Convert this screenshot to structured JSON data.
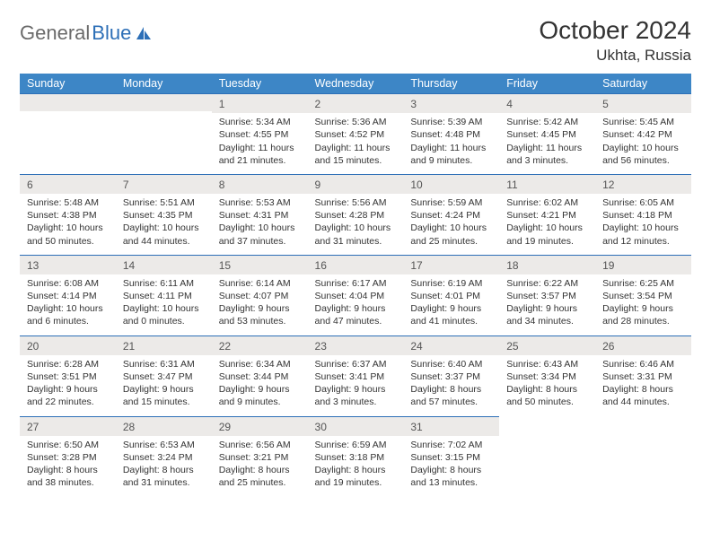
{
  "logo": {
    "word1": "General",
    "word2": "Blue"
  },
  "title": "October 2024",
  "location": "Ukhta, Russia",
  "colors": {
    "header_bg": "#3d86c6",
    "header_text": "#ffffff",
    "daynum_bg": "#eceae8",
    "border": "#2d6fb7",
    "logo_gray": "#6a6a6a",
    "logo_blue": "#2d6fb7",
    "text": "#333333"
  },
  "weekdays": [
    "Sunday",
    "Monday",
    "Tuesday",
    "Wednesday",
    "Thursday",
    "Friday",
    "Saturday"
  ],
  "weeks": [
    [
      null,
      null,
      {
        "n": "1",
        "sr": "Sunrise: 5:34 AM",
        "ss": "Sunset: 4:55 PM",
        "dl": "Daylight: 11 hours and 21 minutes."
      },
      {
        "n": "2",
        "sr": "Sunrise: 5:36 AM",
        "ss": "Sunset: 4:52 PM",
        "dl": "Daylight: 11 hours and 15 minutes."
      },
      {
        "n": "3",
        "sr": "Sunrise: 5:39 AM",
        "ss": "Sunset: 4:48 PM",
        "dl": "Daylight: 11 hours and 9 minutes."
      },
      {
        "n": "4",
        "sr": "Sunrise: 5:42 AM",
        "ss": "Sunset: 4:45 PM",
        "dl": "Daylight: 11 hours and 3 minutes."
      },
      {
        "n": "5",
        "sr": "Sunrise: 5:45 AM",
        "ss": "Sunset: 4:42 PM",
        "dl": "Daylight: 10 hours and 56 minutes."
      }
    ],
    [
      {
        "n": "6",
        "sr": "Sunrise: 5:48 AM",
        "ss": "Sunset: 4:38 PM",
        "dl": "Daylight: 10 hours and 50 minutes."
      },
      {
        "n": "7",
        "sr": "Sunrise: 5:51 AM",
        "ss": "Sunset: 4:35 PM",
        "dl": "Daylight: 10 hours and 44 minutes."
      },
      {
        "n": "8",
        "sr": "Sunrise: 5:53 AM",
        "ss": "Sunset: 4:31 PM",
        "dl": "Daylight: 10 hours and 37 minutes."
      },
      {
        "n": "9",
        "sr": "Sunrise: 5:56 AM",
        "ss": "Sunset: 4:28 PM",
        "dl": "Daylight: 10 hours and 31 minutes."
      },
      {
        "n": "10",
        "sr": "Sunrise: 5:59 AM",
        "ss": "Sunset: 4:24 PM",
        "dl": "Daylight: 10 hours and 25 minutes."
      },
      {
        "n": "11",
        "sr": "Sunrise: 6:02 AM",
        "ss": "Sunset: 4:21 PM",
        "dl": "Daylight: 10 hours and 19 minutes."
      },
      {
        "n": "12",
        "sr": "Sunrise: 6:05 AM",
        "ss": "Sunset: 4:18 PM",
        "dl": "Daylight: 10 hours and 12 minutes."
      }
    ],
    [
      {
        "n": "13",
        "sr": "Sunrise: 6:08 AM",
        "ss": "Sunset: 4:14 PM",
        "dl": "Daylight: 10 hours and 6 minutes."
      },
      {
        "n": "14",
        "sr": "Sunrise: 6:11 AM",
        "ss": "Sunset: 4:11 PM",
        "dl": "Daylight: 10 hours and 0 minutes."
      },
      {
        "n": "15",
        "sr": "Sunrise: 6:14 AM",
        "ss": "Sunset: 4:07 PM",
        "dl": "Daylight: 9 hours and 53 minutes."
      },
      {
        "n": "16",
        "sr": "Sunrise: 6:17 AM",
        "ss": "Sunset: 4:04 PM",
        "dl": "Daylight: 9 hours and 47 minutes."
      },
      {
        "n": "17",
        "sr": "Sunrise: 6:19 AM",
        "ss": "Sunset: 4:01 PM",
        "dl": "Daylight: 9 hours and 41 minutes."
      },
      {
        "n": "18",
        "sr": "Sunrise: 6:22 AM",
        "ss": "Sunset: 3:57 PM",
        "dl": "Daylight: 9 hours and 34 minutes."
      },
      {
        "n": "19",
        "sr": "Sunrise: 6:25 AM",
        "ss": "Sunset: 3:54 PM",
        "dl": "Daylight: 9 hours and 28 minutes."
      }
    ],
    [
      {
        "n": "20",
        "sr": "Sunrise: 6:28 AM",
        "ss": "Sunset: 3:51 PM",
        "dl": "Daylight: 9 hours and 22 minutes."
      },
      {
        "n": "21",
        "sr": "Sunrise: 6:31 AM",
        "ss": "Sunset: 3:47 PM",
        "dl": "Daylight: 9 hours and 15 minutes."
      },
      {
        "n": "22",
        "sr": "Sunrise: 6:34 AM",
        "ss": "Sunset: 3:44 PM",
        "dl": "Daylight: 9 hours and 9 minutes."
      },
      {
        "n": "23",
        "sr": "Sunrise: 6:37 AM",
        "ss": "Sunset: 3:41 PM",
        "dl": "Daylight: 9 hours and 3 minutes."
      },
      {
        "n": "24",
        "sr": "Sunrise: 6:40 AM",
        "ss": "Sunset: 3:37 PM",
        "dl": "Daylight: 8 hours and 57 minutes."
      },
      {
        "n": "25",
        "sr": "Sunrise: 6:43 AM",
        "ss": "Sunset: 3:34 PM",
        "dl": "Daylight: 8 hours and 50 minutes."
      },
      {
        "n": "26",
        "sr": "Sunrise: 6:46 AM",
        "ss": "Sunset: 3:31 PM",
        "dl": "Daylight: 8 hours and 44 minutes."
      }
    ],
    [
      {
        "n": "27",
        "sr": "Sunrise: 6:50 AM",
        "ss": "Sunset: 3:28 PM",
        "dl": "Daylight: 8 hours and 38 minutes."
      },
      {
        "n": "28",
        "sr": "Sunrise: 6:53 AM",
        "ss": "Sunset: 3:24 PM",
        "dl": "Daylight: 8 hours and 31 minutes."
      },
      {
        "n": "29",
        "sr": "Sunrise: 6:56 AM",
        "ss": "Sunset: 3:21 PM",
        "dl": "Daylight: 8 hours and 25 minutes."
      },
      {
        "n": "30",
        "sr": "Sunrise: 6:59 AM",
        "ss": "Sunset: 3:18 PM",
        "dl": "Daylight: 8 hours and 19 minutes."
      },
      {
        "n": "31",
        "sr": "Sunrise: 7:02 AM",
        "ss": "Sunset: 3:15 PM",
        "dl": "Daylight: 8 hours and 13 minutes."
      },
      null,
      null
    ]
  ]
}
